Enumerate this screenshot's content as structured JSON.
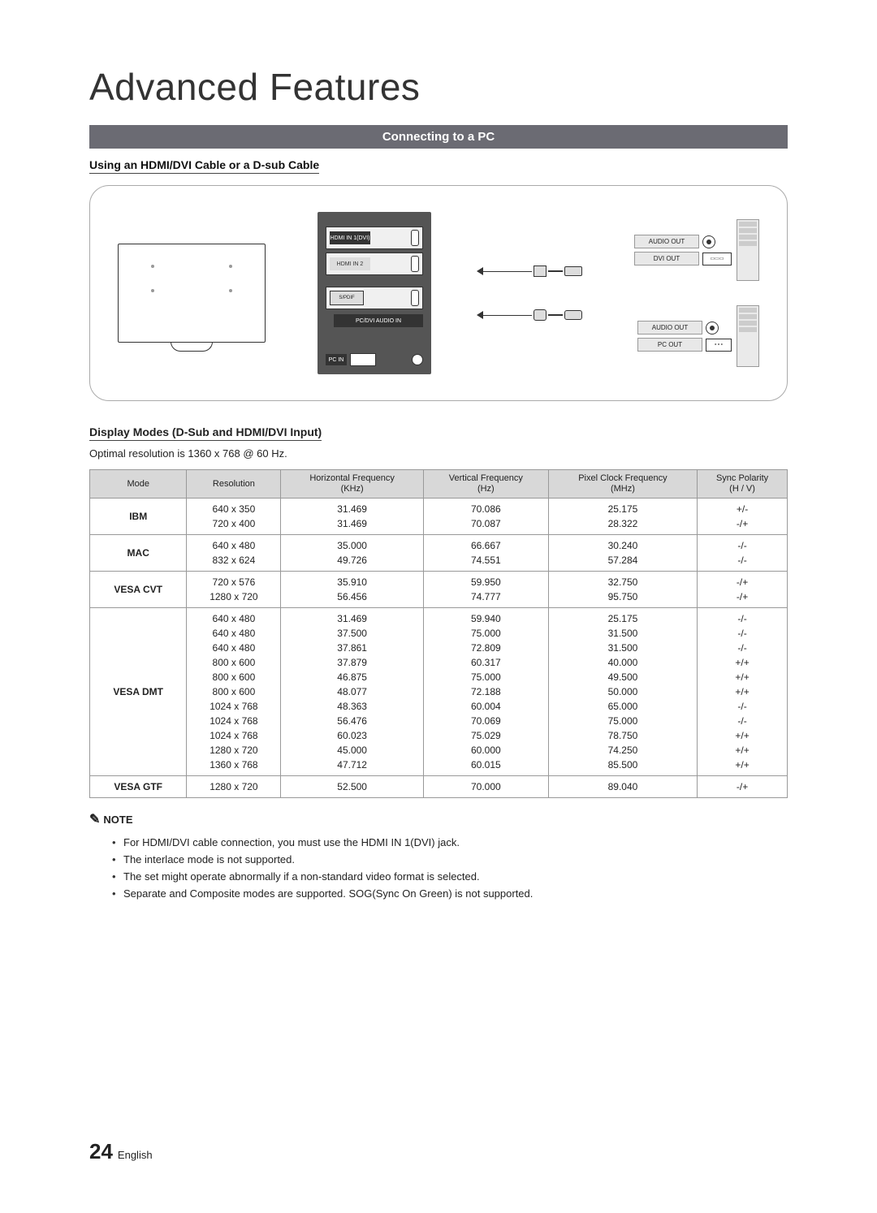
{
  "page": {
    "title": "Advanced Features",
    "number": "24",
    "lang": "English"
  },
  "banner": "Connecting to a PC",
  "sub1": "Using an HDMI/DVI Cable or a D-sub Cable",
  "diagram": {
    "panel_port_top": "HDMI IN 1(DVI)",
    "panel_port_mid": "HDMI IN 2",
    "panel_sep_label": "PC/DVI AUDIO IN",
    "panel_pcin": "PC IN",
    "pc_audio_out": "AUDIO OUT",
    "pc_dvi_out": "DVI OUT",
    "pc_audio_out2": "AUDIO OUT",
    "pc_pc_out": "PC OUT"
  },
  "sub2": "Display Modes (D-Sub and HDMI/DVI Input)",
  "optimal": "Optimal resolution is 1360 x 768 @ 60 Hz.",
  "table": {
    "headers": {
      "mode": "Mode",
      "res": "Resolution",
      "hfreq": "Horizontal Frequency\n(KHz)",
      "vfreq": "Vertical Frequency\n(Hz)",
      "pclk": "Pixel Clock Frequency\n(MHz)",
      "sync": "Sync Polarity\n(H / V)"
    },
    "rows": [
      {
        "mode": "IBM",
        "res": "640 x 350\n720 x 400",
        "h": "31.469\n31.469",
        "v": "70.086\n70.087",
        "p": "25.175\n28.322",
        "s": "+/-\n-/+"
      },
      {
        "mode": "MAC",
        "res": "640 x 480\n832 x 624",
        "h": "35.000\n49.726",
        "v": "66.667\n74.551",
        "p": "30.240\n57.284",
        "s": "-/-\n-/-"
      },
      {
        "mode": "VESA CVT",
        "res": "720 x 576\n1280 x 720",
        "h": "35.910\n56.456",
        "v": "59.950\n74.777",
        "p": "32.750\n95.750",
        "s": "-/+\n-/+"
      },
      {
        "mode": "VESA DMT",
        "res": "640 x 480\n640 x 480\n640 x 480\n800 x 600\n800 x 600\n800 x 600\n1024 x 768\n1024 x 768\n1024 x 768\n1280 x 720\n1360 x 768",
        "h": "31.469\n37.500\n37.861\n37.879\n46.875\n48.077\n48.363\n56.476\n60.023\n45.000\n47.712",
        "v": "59.940\n75.000\n72.809\n60.317\n75.000\n72.188\n60.004\n70.069\n75.029\n60.000\n60.015",
        "p": "25.175\n31.500\n31.500\n40.000\n49.500\n50.000\n65.000\n75.000\n78.750\n74.250\n85.500",
        "s": "-/-\n-/-\n-/-\n+/+\n+/+\n+/+\n-/-\n-/-\n+/+\n+/+\n+/+"
      },
      {
        "mode": "VESA GTF",
        "res": "1280 x 720",
        "h": "52.500",
        "v": "70.000",
        "p": "89.040",
        "s": "-/+"
      }
    ]
  },
  "note_label": "NOTE",
  "notes": [
    "For HDMI/DVI cable connection, you must use the HDMI IN 1(DVI) jack.",
    "The interlace mode is not supported.",
    "The set might operate abnormally if a non-standard video format is selected.",
    "Separate and Composite modes are supported. SOG(Sync On Green) is not supported."
  ],
  "colors": {
    "banner_bg": "#6b6b73",
    "table_header_bg": "#d8d8d8",
    "border": "#999999",
    "text": "#222222"
  }
}
